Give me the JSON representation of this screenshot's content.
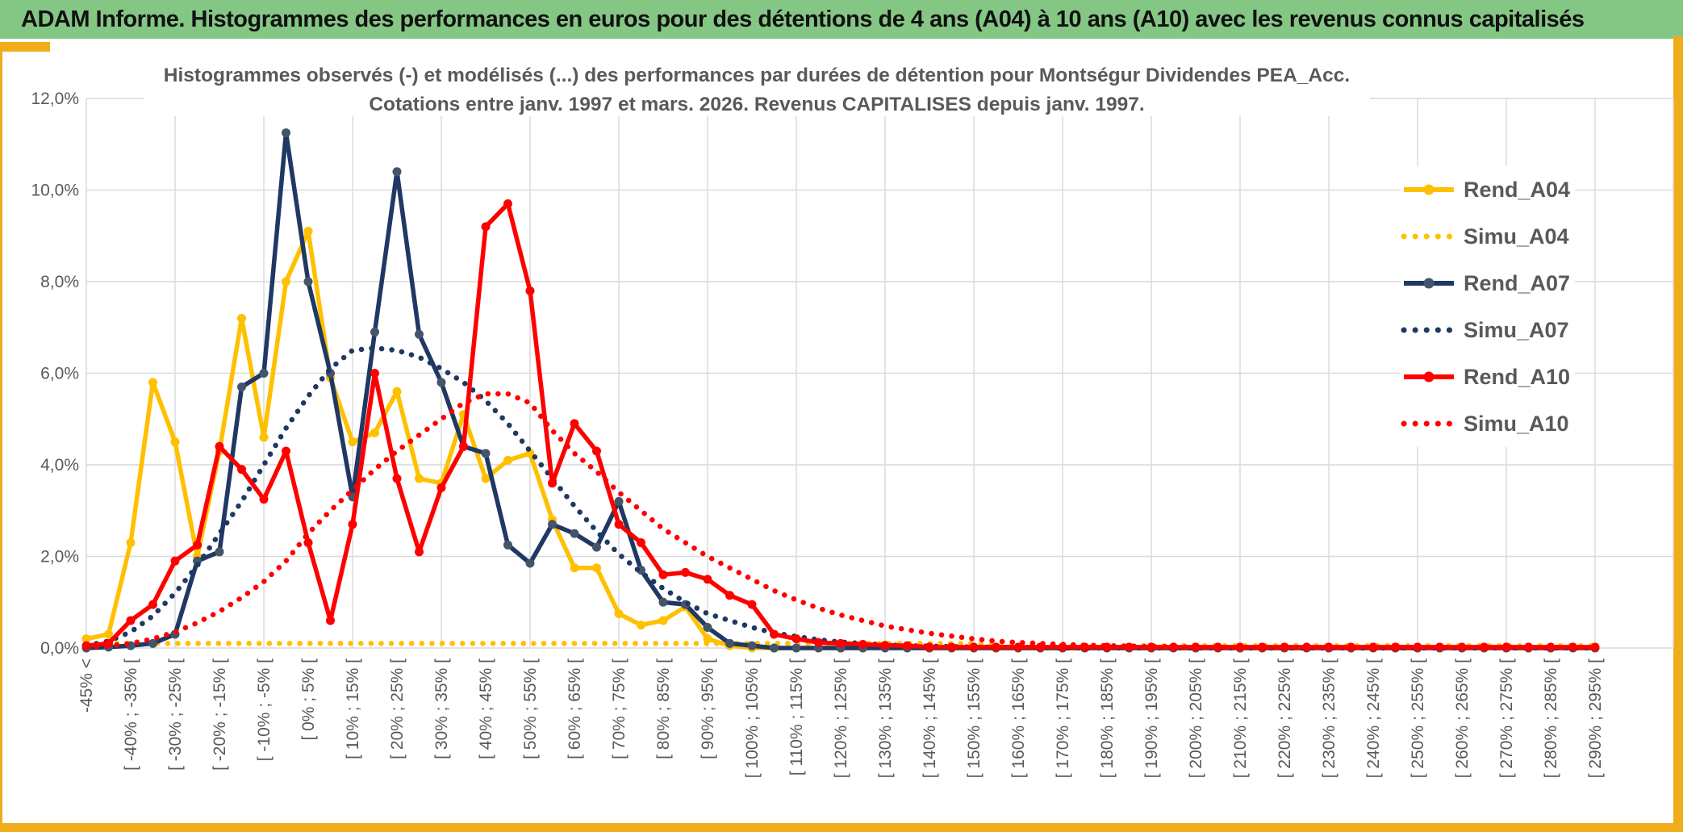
{
  "window": {
    "header_title": "ADAM Informe. Histogrammes des performances en euros pour des détentions de 4 ans (A04) à 10 ans (A10) avec les revenus connus capitalisés"
  },
  "colors": {
    "header_bg": "#84C784",
    "header_text": "#111111",
    "frame_gold": "#EFAD1B",
    "grid": "#D9D9D9",
    "axis_text": "#595959",
    "title_text": "#595959",
    "gold": "#FFC000",
    "navy": "#1F3864",
    "navy_marker": "#44546A",
    "red": "#FF0000",
    "plot_bg": "#FFFFFF"
  },
  "chart_data": {
    "type": "line",
    "title_line1": "Histogrammes observés (-) et modélisés (...) des performances par durées de détention pour Montségur Dividendes PEA_Acc.",
    "title_line2": "Cotations entre janv. 1997 et mars. 2026. Revenus CAPITALISES depuis janv. 1997.",
    "ylim": [
      0,
      12
    ],
    "grid": true,
    "legend_position": "right",
    "y_ticks": {
      "labels": [
        "12,0%",
        "10,0%",
        "8,0%",
        "6,0%",
        "4,0%",
        "2,0%",
        "0,0%"
      ],
      "values": [
        12,
        10,
        8,
        6,
        4,
        2,
        0
      ]
    },
    "bins_total": 69,
    "x_tick_every": 2,
    "x_tick_labels": [
      "-45% <",
      "[ -40% ; -35% [",
      "[ -30% ; -25% [",
      "[ -20% ; -15% [",
      "[ -10% ; -5% [",
      "[ 0% ; 5% [",
      "[ 10% ; 15% [",
      "[ 20% ; 25% [",
      "[ 30% ; 35% [",
      "[ 40% ; 45% [",
      "[ 50% ; 55% [",
      "[ 60% ; 65% [",
      "[ 70% ; 75% [",
      "[ 80% ; 85% [",
      "[ 90% ; 95% [",
      "[ 100% ; 105% [",
      "[ 110% ; 115% [",
      "[ 120% ; 125% [",
      "[ 130% ; 135% [",
      "[ 140% ; 145% [",
      "[ 150% ; 155% [",
      "[ 160% ; 165% [",
      "[ 170% ; 175% [",
      "[ 180% ; 185% [",
      "[ 190% ; 195% [",
      "[ 200% ; 205% [",
      "[ 210% ; 215% [",
      "[ 220% ; 225% [",
      "[ 230% ; 235% [",
      "[ 240% ; 245% [",
      "[ 250% ; 255% [",
      "[ 260% ; 265% [",
      "[ 270% ; 275% [",
      "[ 280% ; 285% [",
      "[ 290% ; 295% ["
    ],
    "series": [
      {
        "name": "Rend_A04",
        "color": "#FFC000",
        "style": "solid",
        "marker": true,
        "marker_color": "#FFC000",
        "values": [
          0.2,
          0.3,
          2.3,
          5.8,
          4.5,
          2.0,
          4.3,
          7.2,
          4.6,
          8.0,
          9.1,
          5.9,
          4.5,
          4.7,
          5.6,
          3.7,
          3.6,
          5.1,
          3.7,
          4.1,
          4.25,
          2.8,
          1.75,
          1.75,
          0.75,
          0.5,
          0.6,
          0.9,
          0.2,
          0.05,
          0,
          0,
          0,
          0,
          0,
          0,
          0,
          0,
          0,
          0,
          0,
          0,
          0,
          0,
          0,
          0,
          0,
          0,
          0,
          0,
          0,
          0,
          0,
          0,
          0,
          0,
          0,
          0,
          0,
          0,
          0,
          0,
          0,
          0,
          0,
          0,
          0,
          0,
          0
        ]
      },
      {
        "name": "Simu_A04",
        "color": "#FFC000",
        "style": "dotted",
        "marker": false,
        "values": [
          0.1,
          0.1,
          0.1,
          0.1,
          0.1,
          0.1,
          0.1,
          0.1,
          0.1,
          0.1,
          0.1,
          0.1,
          0.1,
          0.1,
          0.1,
          0.1,
          0.1,
          0.1,
          0.1,
          0.1,
          0.1,
          0.1,
          0.1,
          0.1,
          0.1,
          0.1,
          0.1,
          0.1,
          0.1,
          0.1,
          0.1,
          0.1,
          0.1,
          0.1,
          0.1,
          0.1,
          0.1,
          0.1,
          0.1,
          0.1,
          0.1,
          0.05,
          0.05,
          0.05,
          0.05,
          0.05,
          0.05,
          0.05,
          0.05,
          0.05,
          0.05,
          0.05,
          0.05,
          0.05,
          0.05,
          0.05,
          0.05,
          0.05,
          0.05,
          0.05,
          0.05,
          0.05,
          0.05,
          0.05,
          0.05,
          0.05,
          0.05,
          0.05,
          0.05
        ]
      },
      {
        "name": "Rend_A07",
        "color": "#1F3864",
        "style": "solid",
        "marker": true,
        "marker_color": "#44546A",
        "values": [
          0,
          0.02,
          0.05,
          0.1,
          0.3,
          1.9,
          2.1,
          5.7,
          6.0,
          11.25,
          8.0,
          6.0,
          3.3,
          6.9,
          10.4,
          6.85,
          5.8,
          4.4,
          4.25,
          2.25,
          1.85,
          2.7,
          2.5,
          2.2,
          3.2,
          1.7,
          1.0,
          0.95,
          0.45,
          0.1,
          0.05,
          0,
          0,
          0,
          0,
          0,
          0,
          0,
          0,
          0,
          0,
          0,
          0,
          0,
          0,
          0,
          0,
          0,
          0,
          0,
          0,
          0,
          0,
          0,
          0,
          0,
          0,
          0,
          0,
          0,
          0,
          0,
          0,
          0,
          0,
          0,
          0,
          0,
          0
        ]
      },
      {
        "name": "Simu_A07",
        "color": "#1F3864",
        "style": "dotted",
        "marker": false,
        "values": [
          0.05,
          0.15,
          0.35,
          0.7,
          1.2,
          1.8,
          2.5,
          3.2,
          4.0,
          4.8,
          5.5,
          6.1,
          6.5,
          6.55,
          6.5,
          6.35,
          6.1,
          5.8,
          5.4,
          4.9,
          4.3,
          3.7,
          3.1,
          2.55,
          2.05,
          1.65,
          1.3,
          1.0,
          0.75,
          0.6,
          0.45,
          0.33,
          0.25,
          0.18,
          0.13,
          0.1,
          0.07,
          0.05,
          0.04,
          0.03,
          0.02,
          0.02,
          0.01,
          0.01,
          0,
          0,
          0,
          0,
          0,
          0,
          0,
          0,
          0,
          0,
          0,
          0,
          0,
          0,
          0,
          0,
          0,
          0,
          0,
          0,
          0,
          0,
          0,
          0,
          0
        ]
      },
      {
        "name": "Rend_A10",
        "color": "#FF0000",
        "style": "solid",
        "marker": true,
        "marker_color": "#FF0000",
        "values": [
          0.05,
          0.1,
          0.6,
          0.95,
          1.9,
          2.25,
          4.4,
          3.9,
          3.25,
          4.3,
          2.3,
          0.6,
          2.7,
          6.0,
          3.7,
          2.1,
          3.5,
          4.4,
          9.2,
          9.7,
          7.8,
          3.6,
          4.9,
          4.3,
          2.7,
          2.3,
          1.6,
          1.65,
          1.5,
          1.15,
          0.95,
          0.3,
          0.2,
          0.12,
          0.1,
          0.08,
          0.06,
          0.05,
          0.02,
          0.02,
          0.02,
          0.02,
          0.02,
          0.02,
          0.02,
          0.02,
          0.02,
          0.02,
          0.02,
          0.02,
          0.02,
          0.02,
          0.02,
          0.02,
          0.02,
          0.02,
          0.02,
          0.02,
          0.02,
          0.02,
          0.02,
          0.02,
          0.02,
          0.02,
          0.02,
          0.02,
          0.02,
          0.02,
          0.02
        ]
      },
      {
        "name": "Simu_A10",
        "color": "#FF0000",
        "style": "dotted",
        "marker": false,
        "values": [
          0.02,
          0.05,
          0.1,
          0.2,
          0.35,
          0.55,
          0.8,
          1.1,
          1.45,
          1.9,
          2.5,
          3.0,
          3.45,
          3.9,
          4.3,
          4.65,
          5.0,
          5.35,
          5.55,
          5.55,
          5.35,
          4.75,
          4.25,
          3.85,
          3.4,
          3.0,
          2.6,
          2.3,
          2.0,
          1.75,
          1.5,
          1.25,
          1.05,
          0.87,
          0.72,
          0.6,
          0.48,
          0.4,
          0.32,
          0.26,
          0.2,
          0.15,
          0.12,
          0.1,
          0.08,
          0.06,
          0.05,
          0.04,
          0.03,
          0.03,
          0.02,
          0.01,
          0.01,
          0.01,
          0.01,
          0.01,
          0.01,
          0.01,
          0.01,
          0.01,
          0.01,
          0.01,
          0.01,
          0.01,
          0.01,
          0.01,
          0.01,
          0.01,
          0.01
        ]
      }
    ]
  }
}
